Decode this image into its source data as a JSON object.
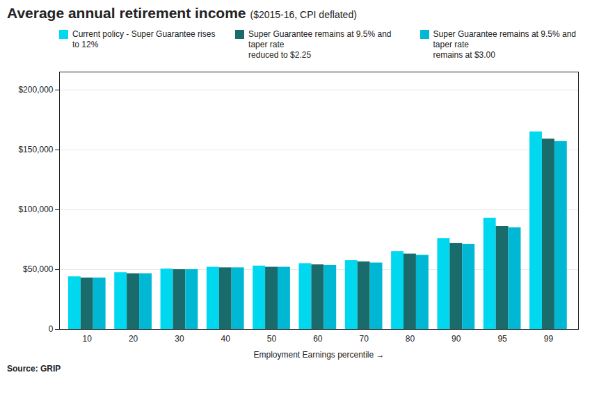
{
  "chart_data": {
    "type": "bar",
    "title": "Average annual retirement income",
    "subtitle": "($2015-16, CPI deflated)",
    "xlabel": "Employment Earnings percentile",
    "source": "Source: GRIP",
    "categories": [
      "10",
      "20",
      "30",
      "40",
      "50",
      "60",
      "70",
      "80",
      "90",
      "95",
      "99"
    ],
    "series": [
      {
        "name": "Current policy - Super Guarantee rises to 12%",
        "color": "#00d8f0",
        "values": [
          44000,
          47500,
          50500,
          52000,
          53000,
          55000,
          57500,
          65000,
          76000,
          93000,
          165000
        ]
      },
      {
        "name": "Super Guarantee remains at 9.5% and taper rate\nreduced to $2.25",
        "color": "#1a6b6b",
        "values": [
          43000,
          46500,
          50000,
          51500,
          52000,
          54000,
          56500,
          63000,
          72000,
          86000,
          159000
        ]
      },
      {
        "name": "Super Guarantee remains at 9.5% and taper rate\nremains at $3.00",
        "color": "#00b8d4",
        "values": [
          43000,
          46500,
          50000,
          51500,
          52000,
          53500,
          55500,
          62000,
          71000,
          85000,
          157000
        ]
      }
    ],
    "ylim": [
      0,
      215000
    ],
    "yticks": [
      0,
      {
        "value": 50000,
        "label": "$50,000"
      },
      {
        "value": 100000,
        "label": "$100,000"
      },
      {
        "value": 150000,
        "label": "$150,000"
      },
      {
        "value": 200000,
        "label": "$200,000"
      }
    ],
    "grid": true,
    "legend": "upper left"
  }
}
